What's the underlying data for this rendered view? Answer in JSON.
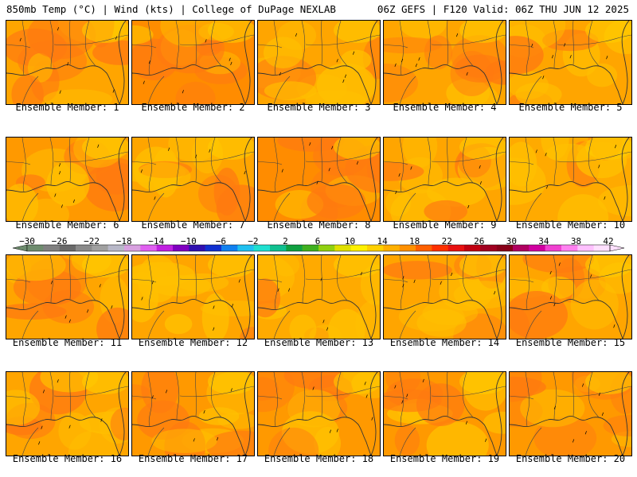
{
  "header": {
    "left": "850mb Temp (°C) | Wind (kts) | College of DuPage NEXLAB",
    "right": "06Z GEFS | F120 Valid: 06Z THU JUN 12 2025"
  },
  "panels": [
    {
      "caption": "Ensemble Member: 1",
      "base": "#FFA500",
      "warm": 0.45
    },
    {
      "caption": "Ensemble Member: 2",
      "base": "#FF8C00",
      "warm": 0.65
    },
    {
      "caption": "Ensemble Member: 3",
      "base": "#FFA500",
      "warm": 0.5
    },
    {
      "caption": "Ensemble Member: 4",
      "base": "#FFA500",
      "warm": 0.4
    },
    {
      "caption": "Ensemble Member: 5",
      "base": "#FFA500",
      "warm": 0.3
    },
    {
      "caption": "Ensemble Member: 6",
      "base": "#FF9900",
      "warm": 0.6
    },
    {
      "caption": "Ensemble Member: 7",
      "base": "#FFA500",
      "warm": 0.5
    },
    {
      "caption": "Ensemble Member: 8",
      "base": "#FF8C00",
      "warm": 0.7
    },
    {
      "caption": "Ensemble Member: 9",
      "base": "#FFA500",
      "warm": 0.5
    },
    {
      "caption": "Ensemble Member: 10",
      "base": "#FFAA00",
      "warm": 0.35
    },
    {
      "caption": "Ensemble Member: 11",
      "base": "#FFA500",
      "warm": 0.5
    },
    {
      "caption": "Ensemble Member: 12",
      "base": "#FFA500",
      "warm": 0.35
    },
    {
      "caption": "Ensemble Member: 13",
      "base": "#FFAA00",
      "warm": 0.3
    },
    {
      "caption": "Ensemble Member: 14",
      "base": "#FFA500",
      "warm": 0.45
    },
    {
      "caption": "Ensemble Member: 15",
      "base": "#FFA500",
      "warm": 0.4
    },
    {
      "caption": "Ensemble Member: 16",
      "base": "#FFA500",
      "warm": 0.4
    },
    {
      "caption": "Ensemble Member: 17",
      "base": "#FF9900",
      "warm": 0.55
    },
    {
      "caption": "Ensemble Member: 18",
      "base": "#FF9900",
      "warm": 0.55
    },
    {
      "caption": "Ensemble Member: 19",
      "base": "#FF9900",
      "warm": 0.6
    },
    {
      "caption": "Ensemble Member: 20",
      "base": "#FF9900",
      "warm": 0.55
    }
  ],
  "colorbar": {
    "labels": [
      "-30",
      "-26",
      "-22",
      "-18",
      "-14",
      "-10",
      "-6",
      "-2",
      "2",
      "6",
      "10",
      "14",
      "18",
      "22",
      "26",
      "30",
      "34",
      "38",
      "42"
    ],
    "colors": [
      "#6E8C6E",
      "#808080",
      "#6A6A6A",
      "#8A8A8A",
      "#A0A0A0",
      "#B8B8C8",
      "#D8A0E0",
      "#E060F0",
      "#C020E0",
      "#8000C0",
      "#3010B0",
      "#1030D0",
      "#1080F0",
      "#20C0F0",
      "#20E0D0",
      "#10C090",
      "#10A040",
      "#40B020",
      "#90D010",
      "#E0E000",
      "#FFF000",
      "#FFD000",
      "#FFB000",
      "#FF9000",
      "#FF6000",
      "#FF3000",
      "#E81010",
      "#C00010",
      "#A00020",
      "#880018",
      "#B00060",
      "#D000A0",
      "#F040D0",
      "#FF80F0",
      "#FFC0FF",
      "#FFE0FF"
    ]
  }
}
